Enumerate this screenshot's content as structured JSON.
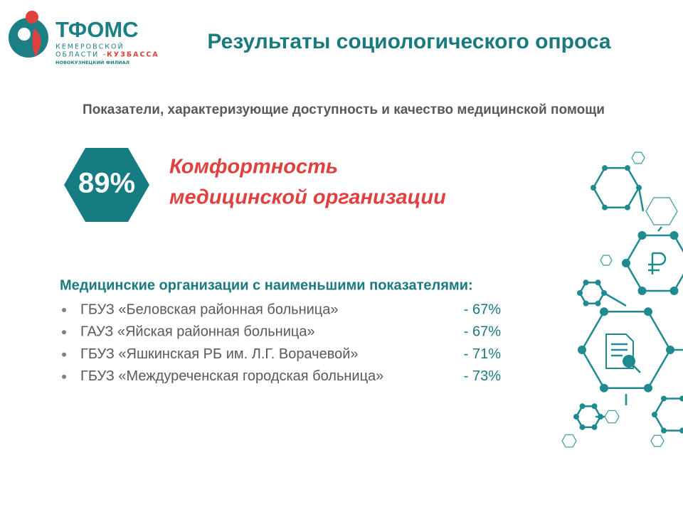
{
  "logo": {
    "name": "ТФОМС",
    "region_line1": "КЕМЕРОВСКОЙ",
    "region_line2a": "ОБЛАСТИ –",
    "region_line2b": "КУЗБАССА",
    "branch": "НОВОКУЗНЕЦКИЙ ФИЛИАЛ"
  },
  "header": {
    "title": "Результаты социологического опроса"
  },
  "subtitle": "Показатели, характеризующие доступность и качество  медицинской помощи",
  "metric": {
    "value": "89%",
    "label_line1": "Комфортность",
    "label_line2": "медицинской организации"
  },
  "list": {
    "heading": "Медицинские организации с наименьшими показателями:",
    "items": [
      {
        "name": "ГБУЗ «Беловская районная больница»",
        "value": "- 67%"
      },
      {
        "name": "ГАУЗ «Яйская районная больница»",
        "value": "- 67%"
      },
      {
        "name": "ГБУЗ «Яшкинская РБ им. Л.Г. Ворачевой»",
        "value": "- 71%"
      },
      {
        "name": "ГБУЗ «Междуреченская городская больница»",
        "value": "- 73%"
      }
    ]
  }
}
